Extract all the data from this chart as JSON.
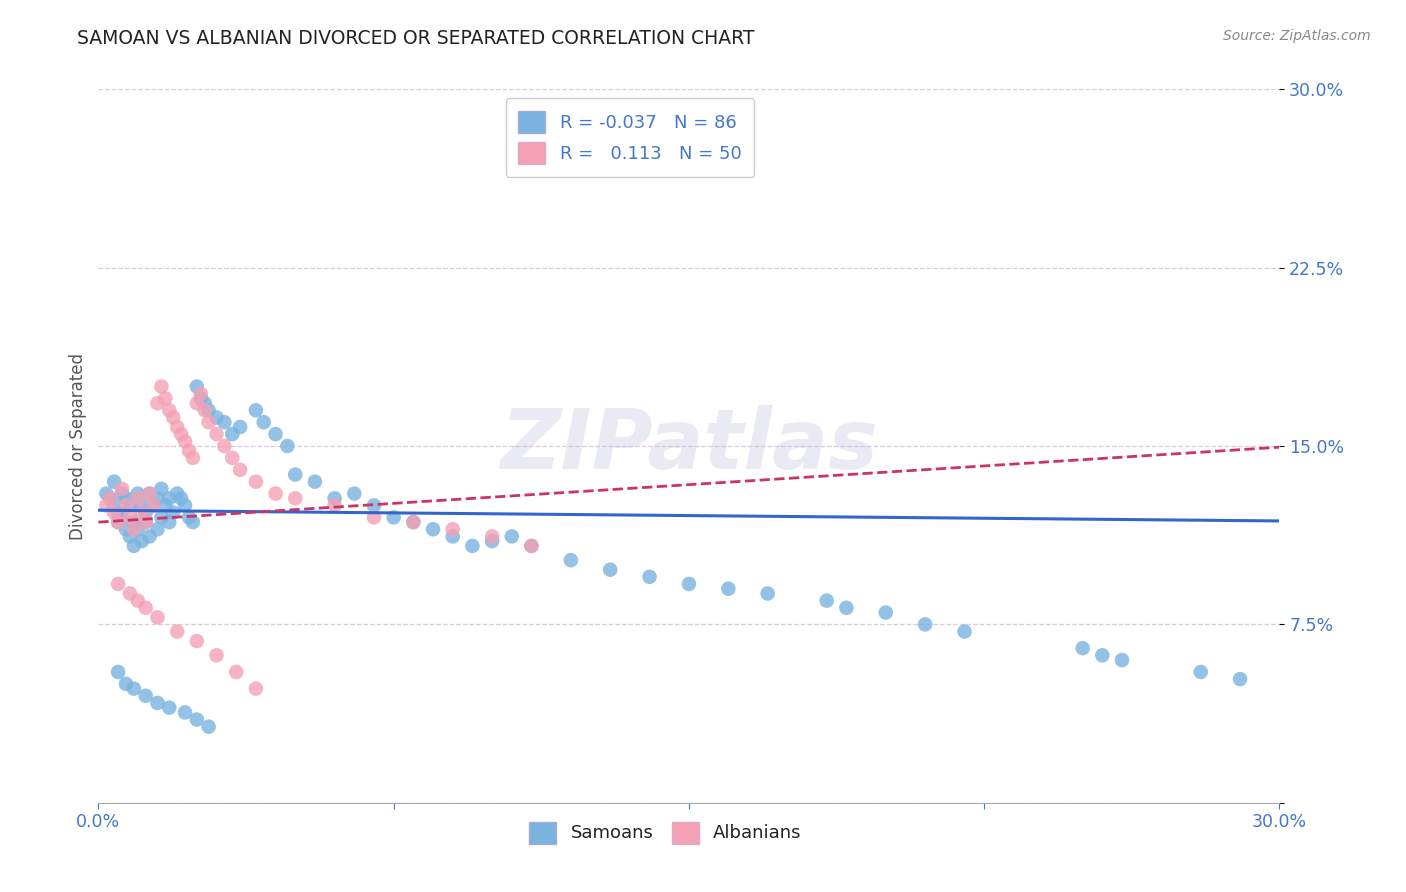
{
  "title": "SAMOAN VS ALBANIAN DIVORCED OR SEPARATED CORRELATION CHART",
  "source": "Source: ZipAtlas.com",
  "ylabel": "Divorced or Separated",
  "x_min": 0.0,
  "x_max": 0.3,
  "y_min": 0.0,
  "y_max": 0.3,
  "samoans_R": -0.037,
  "samoans_N": 86,
  "albanians_R": 0.113,
  "albanians_N": 50,
  "samoans_color": "#7ab3e0",
  "albanians_color": "#f4a0b5",
  "trend_samoan_color": "#3366cc",
  "trend_albanian_color": "#cc3366",
  "background_color": "#ffffff",
  "tick_color": "#4477cc",
  "watermark": "ZIPatlas",
  "samoans_x": [
    0.002,
    0.003,
    0.004,
    0.004,
    0.005,
    0.005,
    0.006,
    0.006,
    0.007,
    0.007,
    0.008,
    0.008,
    0.009,
    0.009,
    0.01,
    0.01,
    0.011,
    0.011,
    0.012,
    0.012,
    0.013,
    0.013,
    0.014,
    0.015,
    0.015,
    0.016,
    0.016,
    0.017,
    0.018,
    0.018,
    0.019,
    0.02,
    0.021,
    0.022,
    0.023,
    0.024,
    0.025,
    0.026,
    0.027,
    0.028,
    0.03,
    0.032,
    0.034,
    0.036,
    0.04,
    0.042,
    0.045,
    0.048,
    0.05,
    0.055,
    0.06,
    0.065,
    0.07,
    0.075,
    0.08,
    0.085,
    0.09,
    0.095,
    0.1,
    0.105,
    0.11,
    0.12,
    0.13,
    0.14,
    0.15,
    0.16,
    0.17,
    0.185,
    0.19,
    0.2,
    0.21,
    0.22,
    0.25,
    0.255,
    0.26,
    0.28,
    0.29,
    0.005,
    0.007,
    0.009,
    0.012,
    0.015,
    0.018,
    0.022,
    0.025,
    0.028
  ],
  "samoans_y": [
    0.13,
    0.128,
    0.125,
    0.135,
    0.122,
    0.118,
    0.13,
    0.12,
    0.128,
    0.115,
    0.125,
    0.112,
    0.118,
    0.108,
    0.13,
    0.115,
    0.125,
    0.11,
    0.122,
    0.118,
    0.13,
    0.112,
    0.125,
    0.128,
    0.115,
    0.132,
    0.12,
    0.125,
    0.128,
    0.118,
    0.122,
    0.13,
    0.128,
    0.125,
    0.12,
    0.118,
    0.175,
    0.17,
    0.168,
    0.165,
    0.162,
    0.16,
    0.155,
    0.158,
    0.165,
    0.16,
    0.155,
    0.15,
    0.138,
    0.135,
    0.128,
    0.13,
    0.125,
    0.12,
    0.118,
    0.115,
    0.112,
    0.108,
    0.11,
    0.112,
    0.108,
    0.102,
    0.098,
    0.095,
    0.092,
    0.09,
    0.088,
    0.085,
    0.082,
    0.08,
    0.075,
    0.072,
    0.065,
    0.062,
    0.06,
    0.055,
    0.052,
    0.055,
    0.05,
    0.048,
    0.045,
    0.042,
    0.04,
    0.038,
    0.035,
    0.032
  ],
  "albanians_x": [
    0.002,
    0.003,
    0.004,
    0.005,
    0.006,
    0.007,
    0.008,
    0.009,
    0.01,
    0.011,
    0.012,
    0.013,
    0.014,
    0.015,
    0.016,
    0.017,
    0.018,
    0.019,
    0.02,
    0.021,
    0.022,
    0.023,
    0.024,
    0.025,
    0.026,
    0.027,
    0.028,
    0.03,
    0.032,
    0.034,
    0.036,
    0.04,
    0.045,
    0.05,
    0.06,
    0.07,
    0.08,
    0.09,
    0.1,
    0.11,
    0.005,
    0.008,
    0.01,
    0.012,
    0.015,
    0.02,
    0.025,
    0.03,
    0.035,
    0.04
  ],
  "albanians_y": [
    0.125,
    0.128,
    0.122,
    0.118,
    0.132,
    0.125,
    0.12,
    0.115,
    0.128,
    0.122,
    0.118,
    0.13,
    0.125,
    0.168,
    0.175,
    0.17,
    0.165,
    0.162,
    0.158,
    0.155,
    0.152,
    0.148,
    0.145,
    0.168,
    0.172,
    0.165,
    0.16,
    0.155,
    0.15,
    0.145,
    0.14,
    0.135,
    0.13,
    0.128,
    0.125,
    0.12,
    0.118,
    0.115,
    0.112,
    0.108,
    0.092,
    0.088,
    0.085,
    0.082,
    0.078,
    0.072,
    0.068,
    0.062,
    0.055,
    0.048
  ],
  "trend_samoan_intercept": 0.123,
  "trend_samoan_slope": -0.015,
  "trend_albanian_intercept": 0.118,
  "trend_albanian_slope": 0.105
}
